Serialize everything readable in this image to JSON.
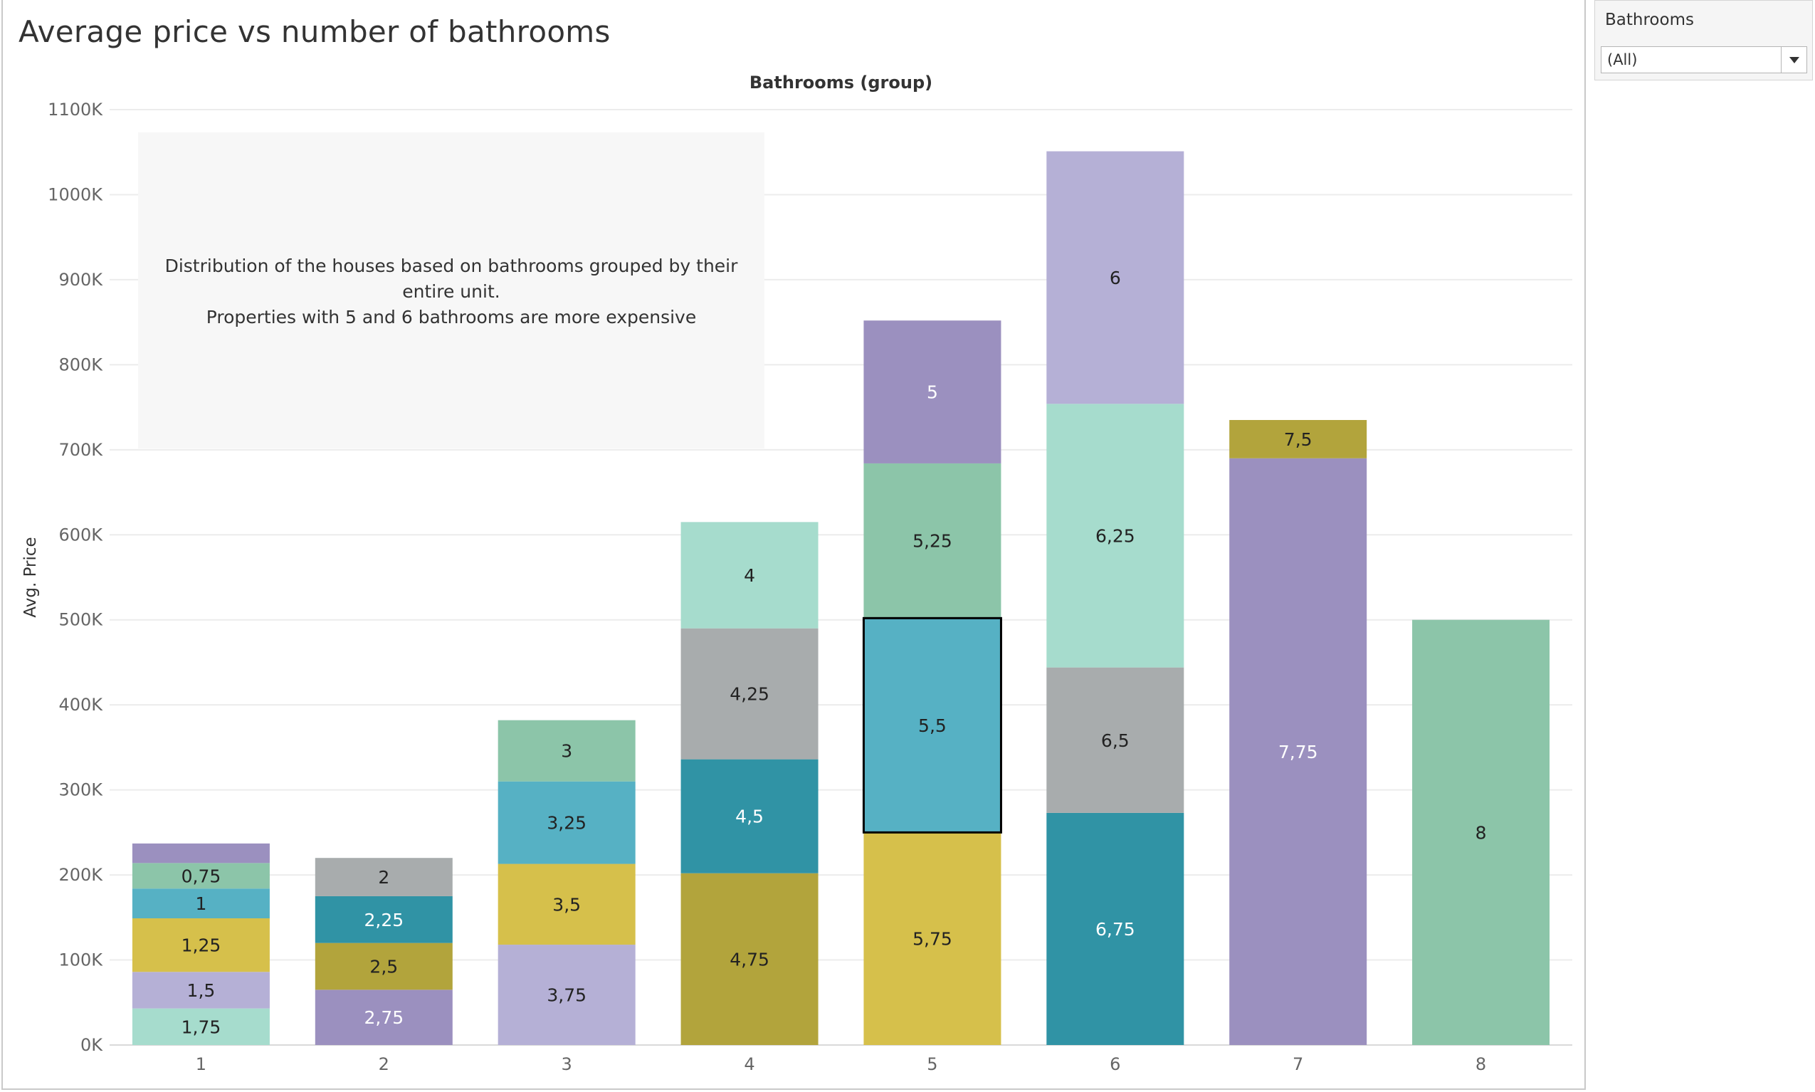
{
  "title": "Average price vs number of bathrooms",
  "filter": {
    "label": "Bathrooms",
    "selected": "(All)"
  },
  "annotation": {
    "lines": [
      "Distribution of the houses based on bathrooms grouped by their",
      "entire unit.",
      "Properties with 5 and 6 bathrooms are more expensive"
    ]
  },
  "chart_data": {
    "type": "bar",
    "stacked": true,
    "title": "Average price vs number of bathrooms",
    "column_header": "Bathrooms (group)",
    "xlabel": "",
    "ylabel": "Avg. Price",
    "ylim": [
      0,
      1100000
    ],
    "y_ticks": [
      {
        "value": 0,
        "label": "0K"
      },
      {
        "value": 100000,
        "label": "100K"
      },
      {
        "value": 200000,
        "label": "200K"
      },
      {
        "value": 300000,
        "label": "300K"
      },
      {
        "value": 400000,
        "label": "400K"
      },
      {
        "value": 500000,
        "label": "500K"
      },
      {
        "value": 600000,
        "label": "600K"
      },
      {
        "value": 700000,
        "label": "700K"
      },
      {
        "value": 800000,
        "label": "800K"
      },
      {
        "value": 900000,
        "label": "900K"
      },
      {
        "value": 1000000,
        "label": "1000K"
      },
      {
        "value": 1100000,
        "label": "1100K"
      }
    ],
    "grid": true,
    "categories": [
      "1",
      "2",
      "3",
      "4",
      "5",
      "6",
      "7",
      "8"
    ],
    "stacks": [
      {
        "category": "1",
        "segments": [
          {
            "label": "1,75",
            "value": 43000,
            "color": "#a6dccd",
            "text_color": "#222"
          },
          {
            "label": "1,5",
            "value": 43000,
            "color": "#b5b0d6",
            "text_color": "#222"
          },
          {
            "label": "1,25",
            "value": 63000,
            "color": "#d6c04b",
            "text_color": "#222"
          },
          {
            "label": "1",
            "value": 35000,
            "color": "#56b1c4",
            "text_color": "#222"
          },
          {
            "label": "0,75",
            "value": 30000,
            "color": "#8cc5a9",
            "text_color": "#222"
          },
          {
            "label": "",
            "value": 23000,
            "color": "#9b90bf",
            "text_color": "#222"
          }
        ]
      },
      {
        "category": "2",
        "segments": [
          {
            "label": "2,75",
            "value": 65000,
            "color": "#9b90bf",
            "text_color": "#ffffff"
          },
          {
            "label": "2,5",
            "value": 55000,
            "color": "#b2a43c",
            "text_color": "#222"
          },
          {
            "label": "2,25",
            "value": 55000,
            "color": "#3093a5",
            "text_color": "#ffffff"
          },
          {
            "label": "2",
            "value": 45000,
            "color": "#a8acad",
            "text_color": "#222"
          }
        ]
      },
      {
        "category": "3",
        "segments": [
          {
            "label": "3,75",
            "value": 118000,
            "color": "#b5b0d6",
            "text_color": "#222"
          },
          {
            "label": "3,5",
            "value": 95000,
            "color": "#d6c04b",
            "text_color": "#222"
          },
          {
            "label": "3,25",
            "value": 97000,
            "color": "#56b1c4",
            "text_color": "#222"
          },
          {
            "label": "3",
            "value": 72000,
            "color": "#8cc5a9",
            "text_color": "#222"
          }
        ]
      },
      {
        "category": "4",
        "segments": [
          {
            "label": "4,75",
            "value": 202000,
            "color": "#b2a43c",
            "text_color": "#222"
          },
          {
            "label": "4,5",
            "value": 134000,
            "color": "#3093a5",
            "text_color": "#ffffff"
          },
          {
            "label": "4,25",
            "value": 154000,
            "color": "#a8acad",
            "text_color": "#222"
          },
          {
            "label": "4",
            "value": 125000,
            "color": "#a6dccd",
            "text_color": "#222"
          }
        ]
      },
      {
        "category": "5",
        "segments": [
          {
            "label": "5,75",
            "value": 250000,
            "color": "#d6c04b",
            "text_color": "#222"
          },
          {
            "label": "5,5",
            "value": 252000,
            "color": "#56b1c4",
            "text_color": "#222",
            "selected": true
          },
          {
            "label": "5,25",
            "value": 182000,
            "color": "#8cc5a9",
            "text_color": "#222"
          },
          {
            "label": "5",
            "value": 168000,
            "color": "#9b90bf",
            "text_color": "#ffffff"
          }
        ]
      },
      {
        "category": "6",
        "segments": [
          {
            "label": "6,75",
            "value": 273000,
            "color": "#3093a5",
            "text_color": "#ffffff"
          },
          {
            "label": "6,5",
            "value": 171000,
            "color": "#a8acad",
            "text_color": "#222"
          },
          {
            "label": "6,25",
            "value": 310000,
            "color": "#a6dccd",
            "text_color": "#222"
          },
          {
            "label": "6",
            "value": 297000,
            "color": "#b5b0d6",
            "text_color": "#222"
          }
        ]
      },
      {
        "category": "7",
        "segments": [
          {
            "label": "7,75",
            "value": 690000,
            "color": "#9b90bf",
            "text_color": "#ffffff"
          },
          {
            "label": "7,5",
            "value": 45000,
            "color": "#b2a43c",
            "text_color": "#222"
          }
        ]
      },
      {
        "category": "8",
        "segments": [
          {
            "label": "8",
            "value": 500000,
            "color": "#8cc5a9",
            "text_color": "#222"
          }
        ]
      }
    ]
  }
}
